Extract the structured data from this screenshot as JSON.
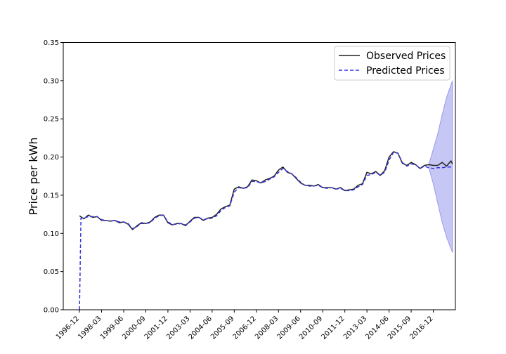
{
  "chart_data": {
    "type": "line",
    "title": "",
    "xlabel": "",
    "ylabel": "Price per kWh",
    "ylim": [
      0,
      0.35
    ],
    "yticks": [
      "0.00",
      "0.05",
      "0.10",
      "0.15",
      "0.20",
      "0.25",
      "0.30",
      "0.35"
    ],
    "xlim": [
      "1996-01",
      "2018-03"
    ],
    "xticks": [
      "1996-12",
      "1998-03",
      "1999-06",
      "2000-09",
      "2001-12",
      "2003-03",
      "2004-06",
      "2005-09",
      "2006-12",
      "2008-03",
      "2009-06",
      "2010-09",
      "2011-12",
      "2013-03",
      "2014-06",
      "2015-09",
      "2016-12"
    ],
    "grid": false,
    "legend_position": "top-right",
    "series": [
      {
        "name": "Observed Prices",
        "color": "#222222",
        "style": "solid",
        "points": [
          [
            "1996-12",
            0.123
          ],
          [
            "1997-03",
            0.119
          ],
          [
            "1997-06",
            0.124
          ],
          [
            "1997-09",
            0.121
          ],
          [
            "1997-12",
            0.122
          ],
          [
            "1998-03",
            0.117
          ],
          [
            "1998-06",
            0.117
          ],
          [
            "1998-09",
            0.116
          ],
          [
            "1998-12",
            0.117
          ],
          [
            "1999-03",
            0.114
          ],
          [
            "1999-06",
            0.115
          ],
          [
            "1999-09",
            0.112
          ],
          [
            "1999-12",
            0.105
          ],
          [
            "2000-03",
            0.11
          ],
          [
            "2000-06",
            0.114
          ],
          [
            "2000-09",
            0.113
          ],
          [
            "2000-12",
            0.115
          ],
          [
            "2001-03",
            0.121
          ],
          [
            "2001-06",
            0.124
          ],
          [
            "2001-09",
            0.124
          ],
          [
            "2001-12",
            0.114
          ],
          [
            "2002-03",
            0.111
          ],
          [
            "2002-06",
            0.113
          ],
          [
            "2002-09",
            0.113
          ],
          [
            "2002-12",
            0.11
          ],
          [
            "2003-03",
            0.116
          ],
          [
            "2003-06",
            0.121
          ],
          [
            "2003-09",
            0.121
          ],
          [
            "2003-12",
            0.117
          ],
          [
            "2004-03",
            0.12
          ],
          [
            "2004-06",
            0.121
          ],
          [
            "2004-09",
            0.125
          ],
          [
            "2004-12",
            0.132
          ],
          [
            "2005-03",
            0.135
          ],
          [
            "2005-06",
            0.137
          ],
          [
            "2005-09",
            0.158
          ],
          [
            "2005-12",
            0.161
          ],
          [
            "2006-03",
            0.159
          ],
          [
            "2006-06",
            0.161
          ],
          [
            "2006-09",
            0.17
          ],
          [
            "2006-12",
            0.169
          ],
          [
            "2007-03",
            0.166
          ],
          [
            "2007-06",
            0.17
          ],
          [
            "2007-09",
            0.172
          ],
          [
            "2007-12",
            0.175
          ],
          [
            "2008-03",
            0.183
          ],
          [
            "2008-06",
            0.187
          ],
          [
            "2008-09",
            0.18
          ],
          [
            "2008-12",
            0.178
          ],
          [
            "2009-03",
            0.172
          ],
          [
            "2009-06",
            0.166
          ],
          [
            "2009-09",
            0.163
          ],
          [
            "2009-12",
            0.163
          ],
          [
            "2010-03",
            0.162
          ],
          [
            "2010-06",
            0.164
          ],
          [
            "2010-09",
            0.16
          ],
          [
            "2010-12",
            0.16
          ],
          [
            "2011-03",
            0.16
          ],
          [
            "2011-06",
            0.158
          ],
          [
            "2011-09",
            0.16
          ],
          [
            "2011-12",
            0.156
          ],
          [
            "2012-03",
            0.157
          ],
          [
            "2012-06",
            0.158
          ],
          [
            "2012-09",
            0.163
          ],
          [
            "2012-12",
            0.165
          ],
          [
            "2013-03",
            0.18
          ],
          [
            "2013-06",
            0.178
          ],
          [
            "2013-09",
            0.181
          ],
          [
            "2013-12",
            0.176
          ],
          [
            "2014-03",
            0.182
          ],
          [
            "2014-06",
            0.2
          ],
          [
            "2014-09",
            0.207
          ],
          [
            "2014-12",
            0.205
          ],
          [
            "2015-03",
            0.192
          ],
          [
            "2015-06",
            0.189
          ],
          [
            "2015-09",
            0.193
          ],
          [
            "2015-12",
            0.19
          ],
          [
            "2016-03",
            0.185
          ],
          [
            "2016-06",
            0.189
          ],
          [
            "2016-09",
            0.19
          ],
          [
            "2016-12",
            0.189
          ],
          [
            "2017-03",
            0.189
          ],
          [
            "2017-06",
            0.193
          ],
          [
            "2017-09",
            0.188
          ],
          [
            "2017-12",
            0.195
          ],
          [
            "2018-01",
            0.191
          ]
        ]
      },
      {
        "name": "Predicted Prices",
        "color": "#3333dd",
        "style": "dashed",
        "points": [
          [
            "1996-12",
            0.0
          ],
          [
            "1997-01",
            0.12
          ],
          [
            "1997-03",
            0.12
          ],
          [
            "1997-06",
            0.122
          ],
          [
            "1997-09",
            0.122
          ],
          [
            "1997-12",
            0.122
          ],
          [
            "1998-03",
            0.118
          ],
          [
            "1998-06",
            0.117
          ],
          [
            "1998-09",
            0.116
          ],
          [
            "1998-12",
            0.117
          ],
          [
            "1999-03",
            0.115
          ],
          [
            "1999-06",
            0.115
          ],
          [
            "1999-09",
            0.113
          ],
          [
            "1999-12",
            0.106
          ],
          [
            "2000-03",
            0.109
          ],
          [
            "2000-06",
            0.113
          ],
          [
            "2000-09",
            0.113
          ],
          [
            "2000-12",
            0.114
          ],
          [
            "2001-03",
            0.12
          ],
          [
            "2001-06",
            0.123
          ],
          [
            "2001-09",
            0.124
          ],
          [
            "2001-12",
            0.115
          ],
          [
            "2002-03",
            0.112
          ],
          [
            "2002-06",
            0.112
          ],
          [
            "2002-09",
            0.113
          ],
          [
            "2002-12",
            0.111
          ],
          [
            "2003-03",
            0.115
          ],
          [
            "2003-06",
            0.12
          ],
          [
            "2003-09",
            0.121
          ],
          [
            "2003-12",
            0.118
          ],
          [
            "2004-03",
            0.119
          ],
          [
            "2004-06",
            0.12
          ],
          [
            "2004-09",
            0.123
          ],
          [
            "2004-12",
            0.13
          ],
          [
            "2005-03",
            0.134
          ],
          [
            "2005-06",
            0.136
          ],
          [
            "2005-09",
            0.154
          ],
          [
            "2005-12",
            0.16
          ],
          [
            "2006-03",
            0.159
          ],
          [
            "2006-06",
            0.16
          ],
          [
            "2006-09",
            0.168
          ],
          [
            "2006-12",
            0.168
          ],
          [
            "2007-03",
            0.166
          ],
          [
            "2007-06",
            0.168
          ],
          [
            "2007-09",
            0.171
          ],
          [
            "2007-12",
            0.174
          ],
          [
            "2008-03",
            0.18
          ],
          [
            "2008-06",
            0.185
          ],
          [
            "2008-09",
            0.181
          ],
          [
            "2008-12",
            0.178
          ],
          [
            "2009-03",
            0.173
          ],
          [
            "2009-06",
            0.167
          ],
          [
            "2009-09",
            0.163
          ],
          [
            "2009-12",
            0.162
          ],
          [
            "2010-03",
            0.162
          ],
          [
            "2010-06",
            0.163
          ],
          [
            "2010-09",
            0.16
          ],
          [
            "2010-12",
            0.159
          ],
          [
            "2011-03",
            0.16
          ],
          [
            "2011-06",
            0.158
          ],
          [
            "2011-09",
            0.159
          ],
          [
            "2011-12",
            0.156
          ],
          [
            "2012-03",
            0.156
          ],
          [
            "2012-06",
            0.157
          ],
          [
            "2012-09",
            0.161
          ],
          [
            "2012-12",
            0.164
          ],
          [
            "2013-03",
            0.176
          ],
          [
            "2013-06",
            0.177
          ],
          [
            "2013-09",
            0.18
          ],
          [
            "2013-12",
            0.176
          ],
          [
            "2014-03",
            0.18
          ],
          [
            "2014-06",
            0.196
          ],
          [
            "2014-09",
            0.206
          ],
          [
            "2014-12",
            0.205
          ],
          [
            "2015-03",
            0.193
          ],
          [
            "2015-06",
            0.188
          ],
          [
            "2015-09",
            0.191
          ],
          [
            "2015-12",
            0.19
          ],
          [
            "2016-03",
            0.185
          ],
          [
            "2016-06",
            0.188
          ],
          [
            "2016-09",
            0.186
          ],
          [
            "2016-12",
            0.185
          ],
          [
            "2017-03",
            0.186
          ],
          [
            "2017-06",
            0.186
          ],
          [
            "2017-09",
            0.187
          ],
          [
            "2017-12",
            0.187
          ],
          [
            "2018-01",
            0.188
          ]
        ]
      }
    ],
    "confidence_band": {
      "color": "#9999ee",
      "points": [
        [
          "2016-09",
          0.19,
          0.186
        ],
        [
          "2016-12",
          0.21,
          0.165
        ],
        [
          "2017-03",
          0.23,
          0.14
        ],
        [
          "2017-06",
          0.255,
          0.115
        ],
        [
          "2017-09",
          0.278,
          0.095
        ],
        [
          "2018-01",
          0.3,
          0.075
        ]
      ]
    }
  }
}
